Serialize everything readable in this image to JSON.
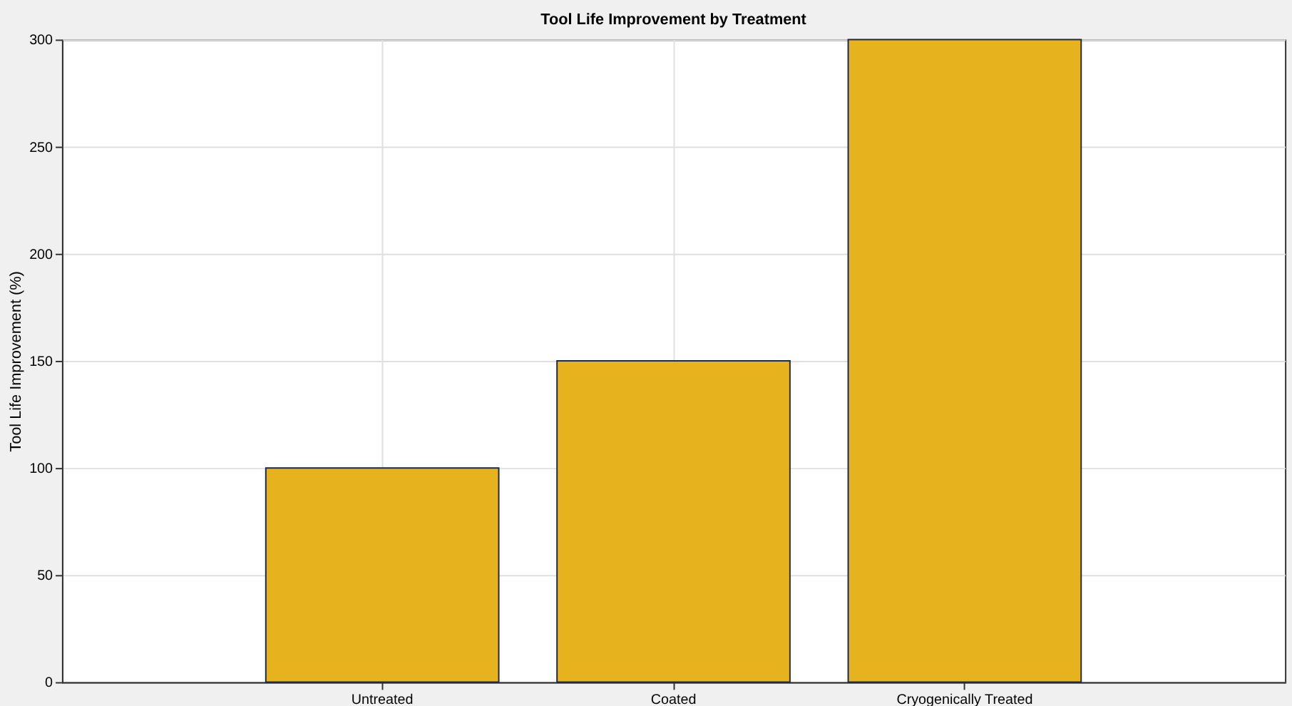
{
  "chart_data": {
    "type": "bar",
    "title": "Tool Life Improvement by Treatment",
    "ylabel": "Tool Life Improvement (%)",
    "categories": [
      "Untreated",
      "Coated",
      "Cryogenically Treated"
    ],
    "values": [
      100,
      150,
      300
    ],
    "color": "#e6b31e",
    "ylim": [
      0,
      300
    ],
    "yticks": [
      0,
      50,
      100,
      150,
      200,
      250,
      300
    ],
    "grid": true
  }
}
